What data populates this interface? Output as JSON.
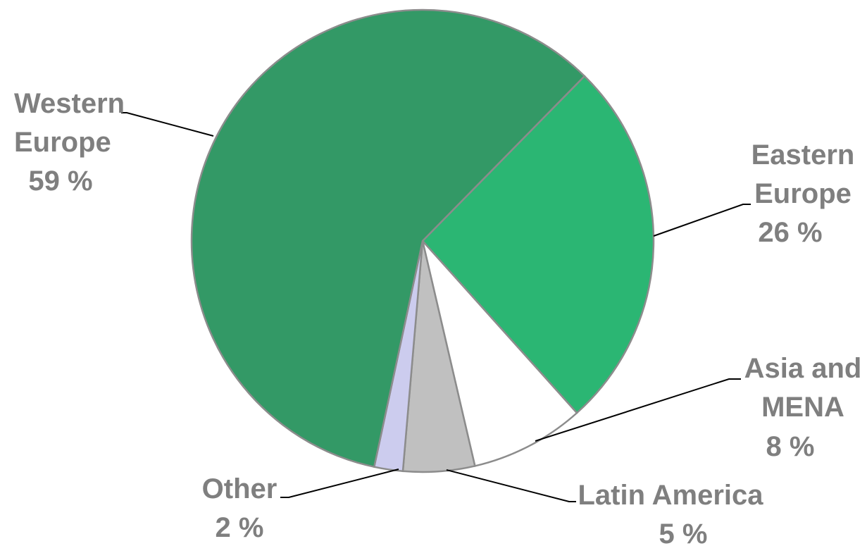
{
  "chart_data": {
    "type": "pie",
    "series": [
      {
        "name": "Western Europe",
        "label_lines": [
          "Western",
          "Europe"
        ],
        "value_label": "59 %",
        "value": 59,
        "color": "#339966"
      },
      {
        "name": "Eastern Europe",
        "label_lines": [
          "Eastern",
          "Europe"
        ],
        "value_label": "26 %",
        "value": 26,
        "color": "#2bb673"
      },
      {
        "name": "Asia and MENA",
        "label_lines": [
          "Asia and",
          "MENA"
        ],
        "value_label": "8 %",
        "value": 8,
        "color": "#ffffff"
      },
      {
        "name": "Latin America",
        "label_lines": [
          "Latin America"
        ],
        "value_label": "5 %",
        "value": 5,
        "color": "#c0c0c0"
      },
      {
        "name": "Other",
        "label_lines": [
          "Other"
        ],
        "value_label": "2 %",
        "value": 2,
        "color": "#ccccee"
      }
    ],
    "legend": "none",
    "data_labels": "outside-with-leader-lines"
  }
}
